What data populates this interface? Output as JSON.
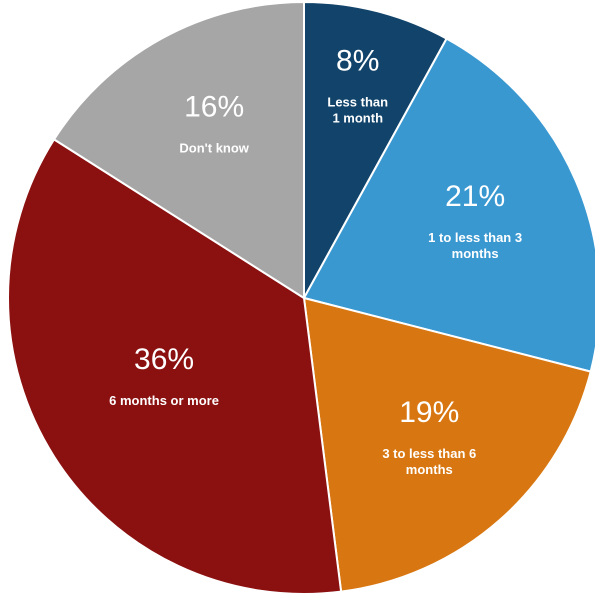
{
  "chart_data": {
    "type": "pie",
    "title": "",
    "start_angle_deg": 0,
    "direction": "clockwise",
    "legend": "none",
    "slices": [
      {
        "label": "Less than 1 month",
        "label_lines": [
          "Less than",
          "1 month"
        ],
        "value": 8,
        "display": "8%",
        "color": "#12446b"
      },
      {
        "label": "1 to less than 3 months",
        "label_lines": [
          "1 to less than 3",
          "months"
        ],
        "value": 21,
        "display": "21%",
        "color": "#3a98d1"
      },
      {
        "label": "3 to less than 6 months",
        "label_lines": [
          "3 to less than 6",
          "months"
        ],
        "value": 19,
        "display": "19%",
        "color": "#d87711"
      },
      {
        "label": "6 months or more",
        "label_lines": [
          "6 months or more"
        ],
        "value": 36,
        "display": "36%",
        "color": "#8b1010"
      },
      {
        "label": "Don't know",
        "label_lines": [
          "Don't know"
        ],
        "value": 16,
        "display": "16%",
        "color": "#a6a6a6"
      }
    ]
  }
}
